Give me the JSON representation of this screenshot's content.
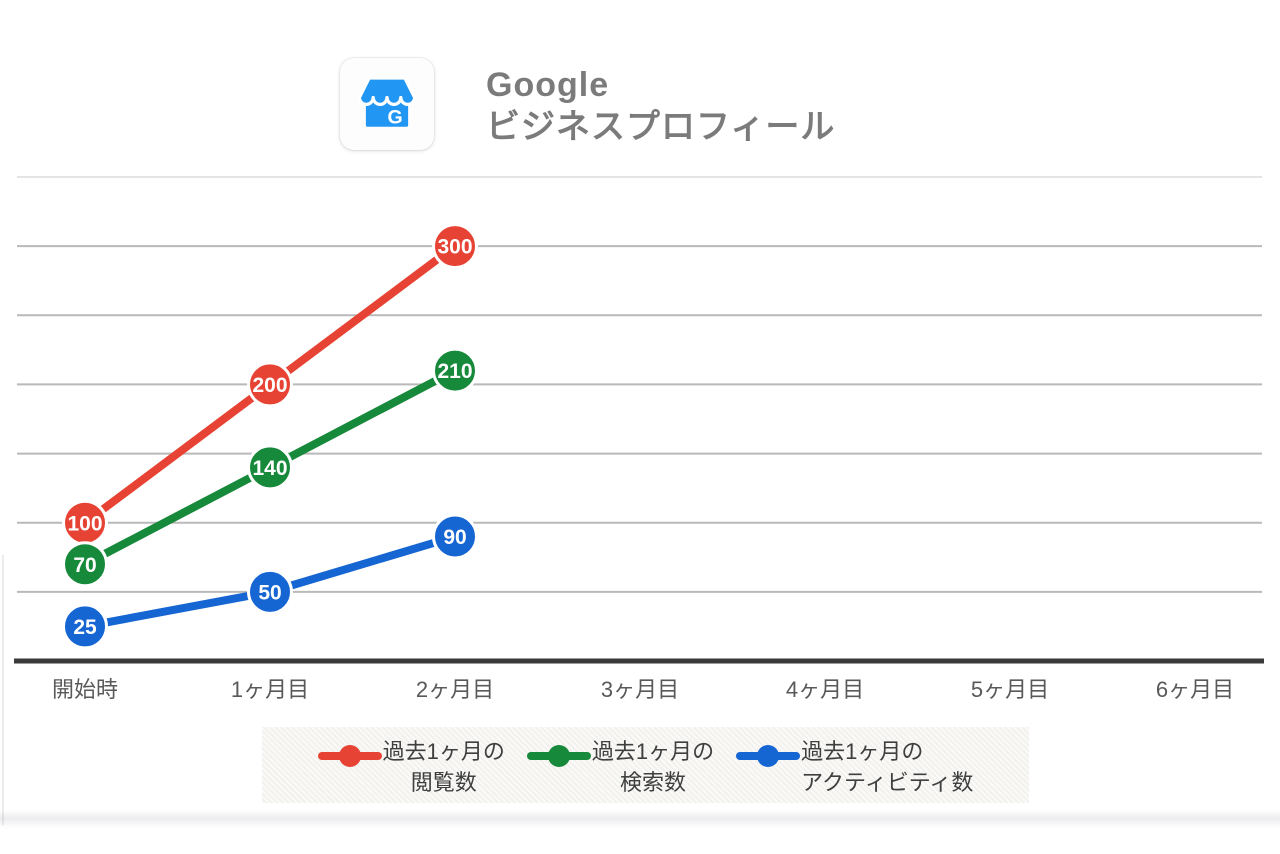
{
  "header": {
    "title_line1": "Google",
    "title_line2": "ビジネスプロフィール",
    "icon_letter": "G"
  },
  "colors": {
    "icon_blue": "#2196f3",
    "title_gray": "#7b7b7b",
    "axis_line": "#3a3a3a",
    "gridline": "#b9b9b9",
    "gridline_top": "#e4e4e4",
    "axis_label": "#595959",
    "point_label_text": "#ffffff",
    "legend_bg": "#f5f4f1",
    "series_red": "#e74334",
    "series_green": "#16893a",
    "series_blue": "#1565d2"
  },
  "chart_data": {
    "type": "line",
    "title": "Google ビジネスプロフィール",
    "categories": [
      "開始時",
      "1ヶ月目",
      "2ヶ月目",
      "3ヶ月目",
      "4ヶ月目",
      "5ヶ月目",
      "6ヶ月目"
    ],
    "series": [
      {
        "name": "過去1ヶ月の閲覧数",
        "name_line1": "過去1ヶ月の",
        "name_line2": "閲覧数",
        "color": "#e74334",
        "values": [
          100,
          200,
          300
        ]
      },
      {
        "name": "過去1ヶ月の検索数",
        "name_line1": "過去1ヶ月の",
        "name_line2": "検索数",
        "color": "#16893a",
        "values": [
          70,
          140,
          210
        ]
      },
      {
        "name": "過去1ヶ月のアクティビティ数",
        "name_line1": "過去1ヶ月の",
        "name_line2": "アクティビティ数",
        "color": "#1565d2",
        "values": [
          25,
          50,
          90
        ]
      }
    ],
    "point_labels_shown": true,
    "xlabel": "",
    "ylabel": "",
    "ylim": [
      0,
      350
    ],
    "grid_step": 50,
    "grid": true,
    "y_tick_labels_visible": false,
    "legend_position": "bottom"
  }
}
